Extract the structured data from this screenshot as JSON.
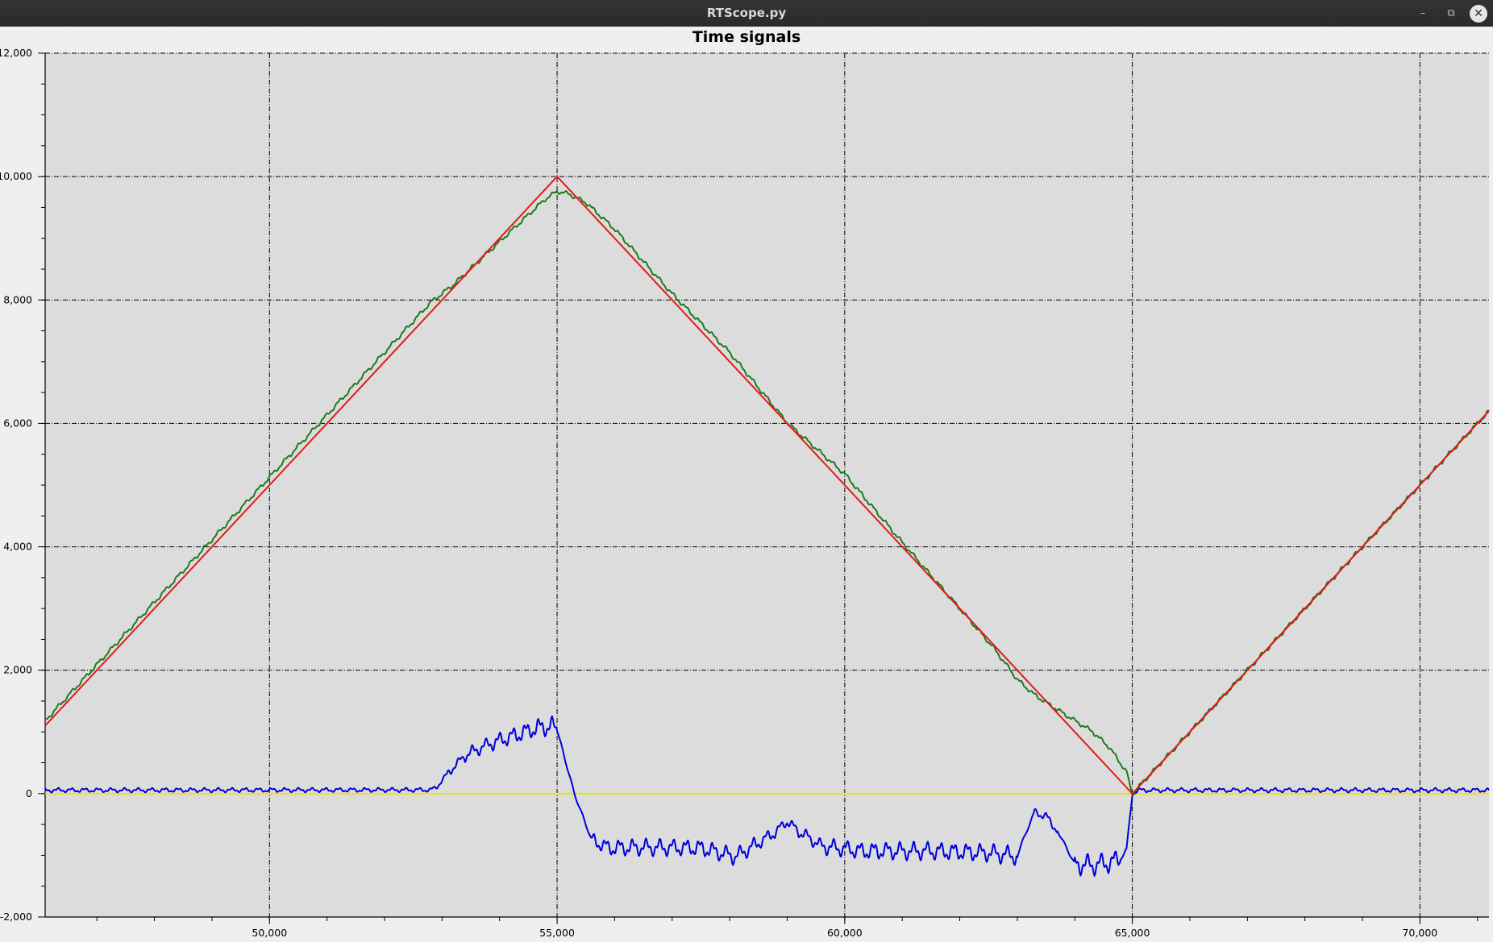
{
  "window": {
    "title": "RTScope.py",
    "controls": {
      "minimize": "–",
      "restore": "⧉",
      "close": "✕"
    }
  },
  "chart_data": {
    "type": "line",
    "title": "Time signals",
    "xlabel": "",
    "ylabel": "",
    "xlim": [
      46100,
      71200
    ],
    "ylim": [
      -2000,
      12000
    ],
    "grid": true,
    "grid_style": "dash-dot",
    "background": "#dcdcdc",
    "x_ticks": [
      50000,
      55000,
      60000,
      65000,
      70000
    ],
    "x_tick_labels": [
      "50,000",
      "55,000",
      "60,000",
      "65,000",
      "70,000"
    ],
    "y_ticks": [
      12000,
      10000,
      8000,
      6000,
      4000,
      2000,
      0,
      -2000
    ],
    "y_tick_labels": [
      "12,000",
      "10,000",
      "8,000",
      "6,000",
      "4,000",
      "2,000",
      "0",
      "-2,000"
    ],
    "series": [
      {
        "color": "#e8e800",
        "style": "flat",
        "x": [
          46100,
          71200
        ],
        "y": [
          0,
          0
        ]
      },
      {
        "color": "#0000dd",
        "style": "ripple",
        "x": [
          46100,
          52800,
          52900,
          53100,
          53400,
          53800,
          54200,
          54600,
          54900,
          55000,
          55300,
          55600,
          55900,
          56500,
          57500,
          58100,
          58500,
          58800,
          59000,
          59200,
          59600,
          60300,
          61500,
          62500,
          63000,
          63100,
          63300,
          63500,
          63700,
          64000,
          64300,
          64600,
          64800,
          64900,
          65000,
          65100,
          71200
        ],
        "y": [
          55,
          60,
          100,
          330,
          620,
          800,
          920,
          1050,
          1100,
          1030,
          0,
          -750,
          -880,
          -870,
          -880,
          -1020,
          -800,
          -620,
          -450,
          -610,
          -850,
          -930,
          -930,
          -960,
          -1010,
          -750,
          -300,
          -370,
          -600,
          -1140,
          -1160,
          -1120,
          -1050,
          -900,
          -10,
          55,
          55
        ]
      },
      {
        "color": "#1d7a1d",
        "style": "ripple",
        "x": [
          46100,
          52800,
          53200,
          54200,
          54800,
          55000,
          55200,
          55500,
          56000,
          57000,
          58000,
          59000,
          60000,
          61000,
          62000,
          62600,
          63000,
          63300,
          63800,
          64300,
          64600,
          64900,
          65000,
          71200
        ],
        "y": [
          1180,
          7960,
          8250,
          9120,
          9640,
          9760,
          9720,
          9580,
          9150,
          8100,
          7150,
          6010,
          5180,
          4070,
          3000,
          2350,
          1850,
          1600,
          1300,
          1010,
          750,
          350,
          0,
          6200
        ]
      },
      {
        "color": "#e41a1a",
        "style": "flat",
        "x": [
          46100,
          55000,
          65000,
          71200
        ],
        "y": [
          1100,
          10000,
          0,
          6200
        ]
      }
    ]
  }
}
